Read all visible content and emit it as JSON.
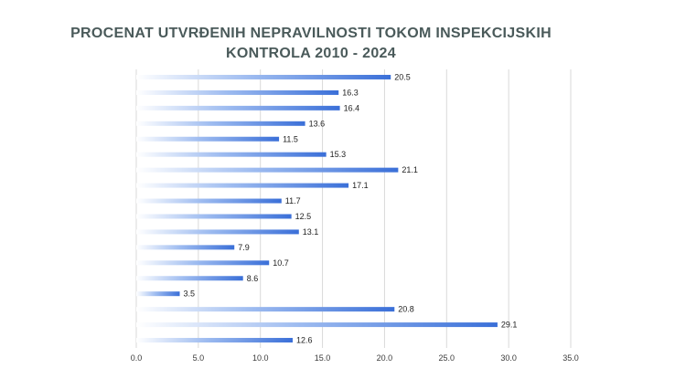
{
  "chart_data": {
    "type": "bar",
    "orientation": "horizontal",
    "title_line1": "PROCENAT UTVRĐENIH NEPRAVILNOSTI TOKOM INSPEKCIJSKIH",
    "title_line2": "KONTROLA  2010 - 2024",
    "values": [
      20.5,
      16.3,
      16.4,
      13.6,
      11.5,
      15.3,
      21.1,
      17.1,
      11.7,
      12.5,
      13.1,
      7.9,
      10.7,
      8.6,
      3.5,
      20.8,
      29.1,
      12.6
    ],
    "value_labels": [
      "20.5",
      "16.3",
      "16.4",
      "13.6",
      "11.5",
      "15.3",
      "21.1",
      "17.1",
      "11.7",
      "12.5",
      "13.1",
      "7.9",
      "10.7",
      "8.6",
      "3.5",
      "20.8",
      "29.1",
      "12.6"
    ],
    "xlim": [
      0,
      35
    ],
    "x_ticks": [
      "0.0",
      "5.0",
      "10.0",
      "15.0",
      "20.0",
      "25.0",
      "30.0",
      "35.0"
    ],
    "grid": true,
    "legend": "none",
    "bar_color": "#3a6fd8",
    "bar_gradient_start": "#ffffff",
    "grid_color": "#d9d9d9"
  }
}
